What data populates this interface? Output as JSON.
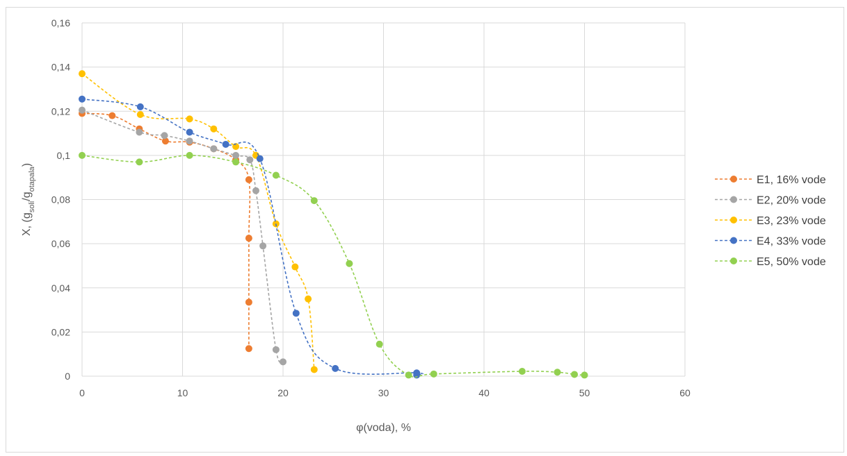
{
  "chart_data": {
    "type": "scatter",
    "title": "",
    "xlabel": "φ(voda), %",
    "ylabel": {
      "prefix": "X, (g",
      "sub1": "soli",
      "mid": "/g",
      "sub2": "otapala",
      "suffix": ")"
    },
    "xlim": [
      0,
      60
    ],
    "ylim": [
      0,
      0.16
    ],
    "xticks": [
      0,
      10,
      20,
      30,
      40,
      50,
      60
    ],
    "yticks": [
      0,
      0.02,
      0.04,
      0.06,
      0.08,
      0.1,
      0.12,
      0.14,
      0.16
    ],
    "xtick_labels": [
      "0",
      "10",
      "20",
      "30",
      "40",
      "50",
      "60"
    ],
    "ytick_labels": [
      "0",
      "0,02",
      "0,04",
      "0,06",
      "0,08",
      "0,1",
      "0,12",
      "0,14",
      "0,16"
    ],
    "grid": true,
    "legend_position": "right",
    "line_style": "dashed, smoothed, with circle markers",
    "series": [
      {
        "name": "E1, 16% vode",
        "color": "#ED7D31",
        "x": [
          0,
          3,
          5.7,
          8.3,
          10.7,
          13.1,
          15.3,
          16.6,
          16.6,
          16.6,
          16.6
        ],
        "y": [
          0.119,
          0.118,
          0.112,
          0.1065,
          0.106,
          0.103,
          0.098,
          0.089,
          0.0625,
          0.0335,
          0.0125
        ]
      },
      {
        "name": "E2, 20% vode",
        "color": "#A5A5A5",
        "x": [
          0,
          5.7,
          8.2,
          10.7,
          13.1,
          15.3,
          16.7,
          17.3,
          18,
          19.3,
          20
        ],
        "y": [
          0.1205,
          0.1105,
          0.109,
          0.1065,
          0.103,
          0.1,
          0.098,
          0.084,
          0.059,
          0.012,
          0.0065
        ]
      },
      {
        "name": "E3, 23% vode",
        "color": "#FFC000",
        "x": [
          0,
          5.8,
          10.7,
          13.1,
          15.3,
          17.3,
          19.3,
          21.2,
          22.5,
          23.1
        ],
        "y": [
          0.137,
          0.1185,
          0.1165,
          0.112,
          0.104,
          0.1,
          0.069,
          0.0495,
          0.035,
          0.003
        ]
      },
      {
        "name": "E4, 33% vode",
        "color": "#4472C4",
        "x": [
          0,
          5.8,
          10.7,
          14.3,
          17.7,
          21.3,
          25.2,
          33.3,
          33.3
        ],
        "y": [
          0.1255,
          0.122,
          0.1105,
          0.105,
          0.0985,
          0.0285,
          0.0035,
          0.0015,
          0.0005
        ]
      },
      {
        "name": "E5, 50% vode",
        "color": "#92D050",
        "x": [
          0,
          5.7,
          10.7,
          15.3,
          19.3,
          23.1,
          26.6,
          29.6,
          32.5,
          35,
          43.8,
          47.3,
          49,
          50
        ],
        "y": [
          0.1,
          0.097,
          0.1,
          0.097,
          0.091,
          0.0795,
          0.051,
          0.0145,
          0.0005,
          0.001,
          0.0022,
          0.0018,
          0.0008,
          0.0005
        ]
      }
    ]
  }
}
